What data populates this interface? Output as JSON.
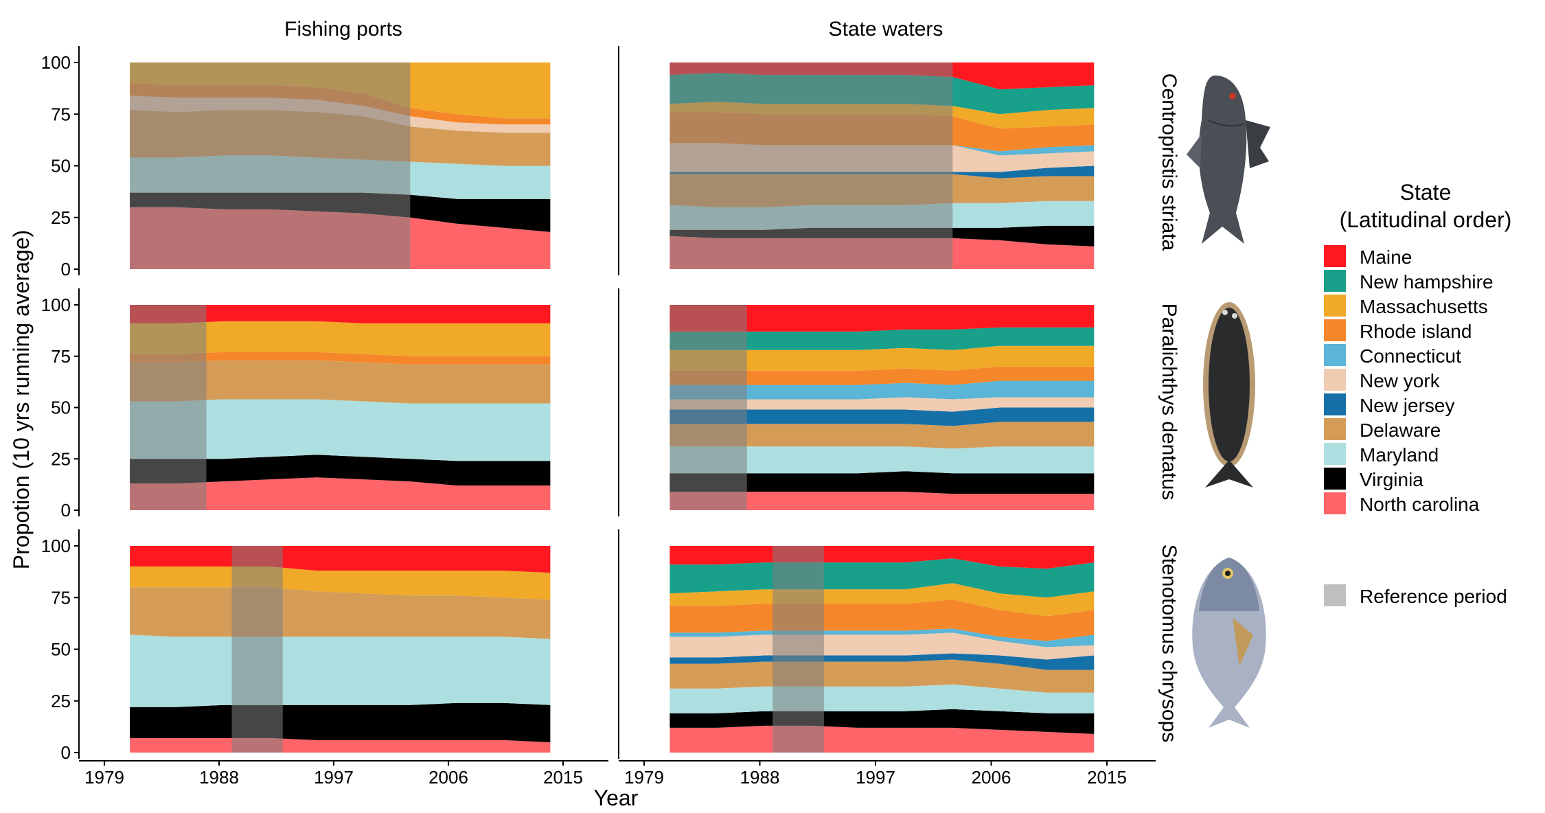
{
  "figure": {
    "ylabel": "Propotion (10 yrs running average)",
    "xlabel": "Year",
    "col_titles": [
      "Fishing ports",
      "State waters"
    ],
    "row_titles": [
      "Centropristis striata",
      "Paralichthys dentatus",
      "Stenotomus chrysops"
    ],
    "x_ticks": [
      1979,
      1988,
      1997,
      2006,
      2015
    ],
    "y_ticks": [
      0,
      25,
      50,
      75,
      100
    ]
  },
  "legend": {
    "title_line1": "State",
    "title_line2": "(Latitudinal order)",
    "reference_label": "Reference period"
  },
  "colors": {
    "Maine": "#ff1820",
    "New hampshire": "#18a08a",
    "Massachusetts": "#f0aa28",
    "Rhode island": "#f5872a",
    "Connecticut": "#5ab5d6",
    "New york": "#f0ccb2",
    "New jersey": "#1670a8",
    "Delaware": "#d49c57",
    "Maryland": "#aedfe0",
    "Virginia": "#000000",
    "North carolina": "#ff6468",
    "reference": "#7f7f7f"
  },
  "chart_data": [
    {
      "type": "area",
      "stacked": true,
      "panel": "Centropristis striata / Fishing ports",
      "x_range": [
        1979,
        2015
      ],
      "ylim": [
        0,
        100
      ],
      "reference_period": [
        1981,
        2003
      ],
      "series": [
        {
          "name": "North carolina",
          "values": [
            30,
            30,
            29,
            29,
            28,
            27,
            25,
            22,
            20,
            18
          ]
        },
        {
          "name": "Virginia",
          "values": [
            7,
            7,
            8,
            8,
            9,
            10,
            11,
            12,
            14,
            16
          ]
        },
        {
          "name": "Maryland",
          "values": [
            17,
            17,
            18,
            18,
            17,
            16,
            16,
            17,
            16,
            16
          ]
        },
        {
          "name": "Delaware",
          "values": [
            23,
            22,
            22,
            22,
            22,
            21,
            17,
            16,
            16,
            16
          ]
        },
        {
          "name": "New jersey",
          "values": [
            0,
            0,
            0,
            0,
            0,
            0,
            0,
            0,
            0,
            0
          ]
        },
        {
          "name": "New york",
          "values": [
            7,
            7,
            6,
            6,
            6,
            5,
            5,
            4,
            4,
            4
          ]
        },
        {
          "name": "Connecticut",
          "values": [
            0,
            0,
            0,
            0,
            0,
            0,
            0,
            0,
            0,
            0
          ]
        },
        {
          "name": "Rhode island",
          "values": [
            6,
            6,
            6,
            6,
            6,
            6,
            4,
            4,
            3,
            3
          ]
        },
        {
          "name": "Massachusetts",
          "values": [
            10,
            11,
            11,
            11,
            12,
            15,
            22,
            25,
            27,
            27
          ]
        },
        {
          "name": "New hampshire",
          "values": [
            0,
            0,
            0,
            0,
            0,
            0,
            0,
            0,
            0,
            0
          ]
        },
        {
          "name": "Maine",
          "values": [
            0,
            0,
            0,
            0,
            0,
            0,
            0,
            0,
            0,
            0
          ]
        }
      ]
    },
    {
      "type": "area",
      "stacked": true,
      "panel": "Centropristis striata / State waters",
      "x_range": [
        1979,
        2015
      ],
      "ylim": [
        0,
        100
      ],
      "reference_period": [
        1981,
        2003
      ],
      "series": [
        {
          "name": "North carolina",
          "values": [
            16,
            15,
            15,
            15,
            15,
            15,
            15,
            14,
            12,
            11
          ]
        },
        {
          "name": "Virginia",
          "values": [
            3,
            4,
            4,
            5,
            5,
            5,
            5,
            6,
            9,
            10
          ]
        },
        {
          "name": "Maryland",
          "values": [
            12,
            11,
            11,
            11,
            11,
            11,
            12,
            12,
            12,
            12
          ]
        },
        {
          "name": "Delaware",
          "values": [
            15,
            16,
            16,
            15,
            15,
            15,
            14,
            12,
            12,
            12
          ]
        },
        {
          "name": "New jersey",
          "values": [
            1,
            1,
            1,
            1,
            1,
            1,
            1,
            3,
            4,
            5
          ]
        },
        {
          "name": "New york",
          "values": [
            14,
            14,
            13,
            13,
            13,
            13,
            13,
            8,
            7,
            7
          ]
        },
        {
          "name": "Connecticut",
          "values": [
            0,
            0,
            0,
            0,
            0,
            0,
            0,
            2,
            3,
            3
          ]
        },
        {
          "name": "Rhode island",
          "values": [
            15,
            15,
            15,
            15,
            15,
            15,
            14,
            11,
            10,
            10
          ]
        },
        {
          "name": "Massachusetts",
          "values": [
            4,
            5,
            5,
            5,
            5,
            5,
            5,
            7,
            8,
            8
          ]
        },
        {
          "name": "New hampshire",
          "values": [
            14,
            14,
            14,
            14,
            14,
            14,
            14,
            12,
            11,
            11
          ]
        },
        {
          "name": "Maine",
          "values": [
            6,
            5,
            6,
            6,
            6,
            6,
            7,
            13,
            12,
            11
          ]
        }
      ]
    },
    {
      "type": "area",
      "stacked": true,
      "panel": "Paralichthys dentatus / Fishing ports",
      "x_range": [
        1979,
        2015
      ],
      "ylim": [
        0,
        100
      ],
      "reference_period": [
        1981,
        1987
      ],
      "series": [
        {
          "name": "North carolina",
          "values": [
            13,
            13,
            14,
            15,
            16,
            15,
            14,
            12,
            12,
            12
          ]
        },
        {
          "name": "Virginia",
          "values": [
            12,
            12,
            11,
            11,
            11,
            11,
            11,
            12,
            12,
            12
          ]
        },
        {
          "name": "Maryland",
          "values": [
            28,
            28,
            29,
            28,
            27,
            27,
            27,
            28,
            28,
            28
          ]
        },
        {
          "name": "Delaware",
          "values": [
            19,
            19,
            19,
            19,
            19,
            19,
            19,
            19,
            19,
            19
          ]
        },
        {
          "name": "New jersey",
          "values": [
            0,
            0,
            0,
            0,
            0,
            0,
            0,
            0,
            0,
            0
          ]
        },
        {
          "name": "New york",
          "values": [
            0,
            0,
            0,
            0,
            0,
            0,
            0,
            0,
            0,
            0
          ]
        },
        {
          "name": "Connecticut",
          "values": [
            0,
            0,
            0,
            0,
            0,
            0,
            0,
            0,
            0,
            0
          ]
        },
        {
          "name": "Rhode island",
          "values": [
            4,
            4,
            4,
            4,
            4,
            4,
            4,
            4,
            4,
            4
          ]
        },
        {
          "name": "Massachusetts",
          "values": [
            15,
            15,
            15,
            15,
            15,
            15,
            16,
            16,
            16,
            16
          ]
        },
        {
          "name": "New hampshire",
          "values": [
            0,
            0,
            0,
            0,
            0,
            0,
            0,
            0,
            0,
            0
          ]
        },
        {
          "name": "Maine",
          "values": [
            9,
            9,
            8,
            8,
            8,
            9,
            9,
            9,
            9,
            9
          ]
        }
      ]
    },
    {
      "type": "area",
      "stacked": true,
      "panel": "Paralichthys dentatus / State waters",
      "x_range": [
        1979,
        2015
      ],
      "ylim": [
        0,
        100
      ],
      "reference_period": [
        1981,
        1987
      ],
      "series": [
        {
          "name": "North carolina",
          "values": [
            9,
            9,
            9,
            9,
            9,
            9,
            8,
            8,
            8,
            8
          ]
        },
        {
          "name": "Virginia",
          "values": [
            9,
            9,
            9,
            9,
            9,
            10,
            10,
            10,
            10,
            10
          ]
        },
        {
          "name": "Maryland",
          "values": [
            13,
            13,
            13,
            13,
            13,
            12,
            12,
            13,
            13,
            13
          ]
        },
        {
          "name": "Delaware",
          "values": [
            11,
            11,
            11,
            11,
            11,
            11,
            11,
            12,
            12,
            12
          ]
        },
        {
          "name": "New jersey",
          "values": [
            7,
            7,
            7,
            7,
            7,
            7,
            7,
            7,
            7,
            7
          ]
        },
        {
          "name": "New york",
          "values": [
            5,
            5,
            5,
            5,
            5,
            6,
            6,
            5,
            5,
            5
          ]
        },
        {
          "name": "Connecticut",
          "values": [
            7,
            7,
            7,
            7,
            7,
            7,
            7,
            8,
            8,
            8
          ]
        },
        {
          "name": "Rhode island",
          "values": [
            7,
            7,
            7,
            7,
            7,
            7,
            7,
            7,
            7,
            7
          ]
        },
        {
          "name": "Massachusetts",
          "values": [
            10,
            10,
            10,
            10,
            10,
            10,
            10,
            10,
            10,
            10
          ]
        },
        {
          "name": "New hampshire",
          "values": [
            9,
            9,
            9,
            9,
            9,
            9,
            10,
            9,
            9,
            9
          ]
        },
        {
          "name": "Maine",
          "values": [
            13,
            13,
            13,
            13,
            13,
            12,
            12,
            11,
            11,
            11
          ]
        }
      ]
    },
    {
      "type": "area",
      "stacked": true,
      "panel": "Stenotomus chrysops / Fishing ports",
      "x_range": [
        1979,
        2015
      ],
      "ylim": [
        0,
        100
      ],
      "reference_period": [
        1989,
        1993
      ],
      "series": [
        {
          "name": "North carolina",
          "values": [
            7,
            7,
            7,
            7,
            6,
            6,
            6,
            6,
            6,
            5
          ]
        },
        {
          "name": "Virginia",
          "values": [
            15,
            15,
            16,
            16,
            17,
            17,
            17,
            18,
            18,
            18
          ]
        },
        {
          "name": "Maryland",
          "values": [
            35,
            34,
            33,
            33,
            33,
            33,
            33,
            32,
            32,
            32
          ]
        },
        {
          "name": "Delaware",
          "values": [
            23,
            24,
            24,
            24,
            22,
            21,
            20,
            20,
            19,
            19
          ]
        },
        {
          "name": "New jersey",
          "values": [
            0,
            0,
            0,
            0,
            0,
            0,
            0,
            0,
            0,
            0
          ]
        },
        {
          "name": "New york",
          "values": [
            0,
            0,
            0,
            0,
            0,
            0,
            0,
            0,
            0,
            0
          ]
        },
        {
          "name": "Connecticut",
          "values": [
            0,
            0,
            0,
            0,
            0,
            0,
            0,
            0,
            0,
            0
          ]
        },
        {
          "name": "Rhode island",
          "values": [
            0,
            0,
            0,
            0,
            0,
            0,
            0,
            0,
            0,
            0
          ]
        },
        {
          "name": "Massachusetts",
          "values": [
            10,
            10,
            10,
            10,
            10,
            11,
            12,
            12,
            13,
            13
          ]
        },
        {
          "name": "New hampshire",
          "values": [
            0,
            0,
            0,
            0,
            0,
            0,
            0,
            0,
            0,
            0
          ]
        },
        {
          "name": "Maine",
          "values": [
            10,
            10,
            10,
            10,
            12,
            12,
            12,
            12,
            12,
            13
          ]
        }
      ]
    },
    {
      "type": "area",
      "stacked": true,
      "panel": "Stenotomus chrysops / State waters",
      "x_range": [
        1979,
        2015
      ],
      "ylim": [
        0,
        100
      ],
      "reference_period": [
        1989,
        1993
      ],
      "series": [
        {
          "name": "North carolina",
          "values": [
            12,
            12,
            13,
            13,
            12,
            12,
            12,
            11,
            10,
            9
          ]
        },
        {
          "name": "Virginia",
          "values": [
            7,
            7,
            7,
            7,
            8,
            8,
            9,
            9,
            9,
            10
          ]
        },
        {
          "name": "Maryland",
          "values": [
            12,
            12,
            12,
            12,
            12,
            12,
            12,
            11,
            10,
            10
          ]
        },
        {
          "name": "Delaware",
          "values": [
            12,
            12,
            12,
            12,
            12,
            12,
            12,
            12,
            11,
            11
          ]
        },
        {
          "name": "New jersey",
          "values": [
            3,
            3,
            3,
            3,
            3,
            3,
            3,
            4,
            5,
            7
          ]
        },
        {
          "name": "New york",
          "values": [
            10,
            10,
            10,
            10,
            10,
            10,
            10,
            7,
            6,
            5
          ]
        },
        {
          "name": "Connecticut",
          "values": [
            2,
            2,
            2,
            2,
            2,
            2,
            2,
            2,
            3,
            5
          ]
        },
        {
          "name": "Rhode island",
          "values": [
            13,
            13,
            13,
            13,
            13,
            13,
            14,
            13,
            12,
            12
          ]
        },
        {
          "name": "Massachusetts",
          "values": [
            6,
            7,
            7,
            7,
            7,
            7,
            8,
            8,
            9,
            9
          ]
        },
        {
          "name": "New hampshire",
          "values": [
            14,
            13,
            13,
            13,
            13,
            13,
            12,
            13,
            14,
            14
          ]
        },
        {
          "name": "Maine",
          "values": [
            9,
            9,
            8,
            8,
            8,
            8,
            6,
            10,
            11,
            8
          ]
        }
      ]
    }
  ]
}
